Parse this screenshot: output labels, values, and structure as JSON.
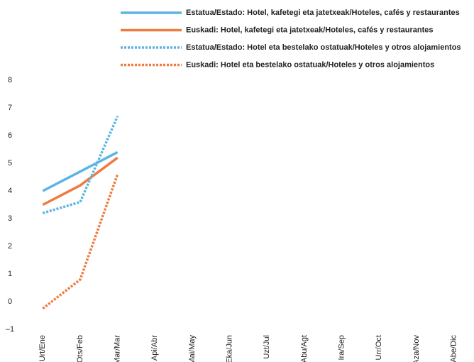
{
  "chart_data": {
    "type": "line",
    "categories": [
      "Urt/Ene",
      "Ots/Feb",
      "Mar/Mar",
      "Api/Abr",
      "Mai/May",
      "Eka/Jun",
      "Uzt/Jul",
      "Abu/Agt",
      "Ira/Sep",
      "Urr/Oct",
      "Aza/Nov",
      "Abe/Dic"
    ],
    "series": [
      {
        "name": "Estatua/Estado: Hotel, kafetegi eta jatetxeak/Hoteles, cafés y restaurantes",
        "color": "#5bb4e5",
        "dash": "solid",
        "values": [
          4.0,
          4.7,
          5.4,
          null,
          null,
          null,
          null,
          null,
          null,
          null,
          null,
          null
        ]
      },
      {
        "name": "Euskadi: Hotel, kafetegi eta jatetxeak/Hoteles, cafés y restaurantes",
        "color": "#ee7b3f",
        "dash": "solid",
        "values": [
          3.5,
          4.2,
          5.2,
          null,
          null,
          null,
          null,
          null,
          null,
          null,
          null,
          null
        ]
      },
      {
        "name": "Estatua/Estado: Hotel eta bestelako ostatuak/Hoteles y otros alojamientos",
        "color": "#5bb4e5",
        "dash": "dotted",
        "values": [
          3.2,
          3.6,
          6.7,
          null,
          null,
          null,
          null,
          null,
          null,
          null,
          null,
          null
        ]
      },
      {
        "name": "Euskadi: Hotel eta bestelako ostatuak/Hoteles y otros alojamientos",
        "color": "#ee7b3f",
        "dash": "dotted",
        "values": [
          -0.25,
          0.8,
          4.6,
          null,
          null,
          null,
          null,
          null,
          null,
          null,
          null,
          null
        ]
      }
    ],
    "ylim": [
      -1,
      8
    ],
    "yticks": [
      {
        "value": -1,
        "label": "–1"
      },
      0,
      1,
      2,
      3,
      4,
      5,
      6,
      7,
      8
    ],
    "grid": false
  }
}
